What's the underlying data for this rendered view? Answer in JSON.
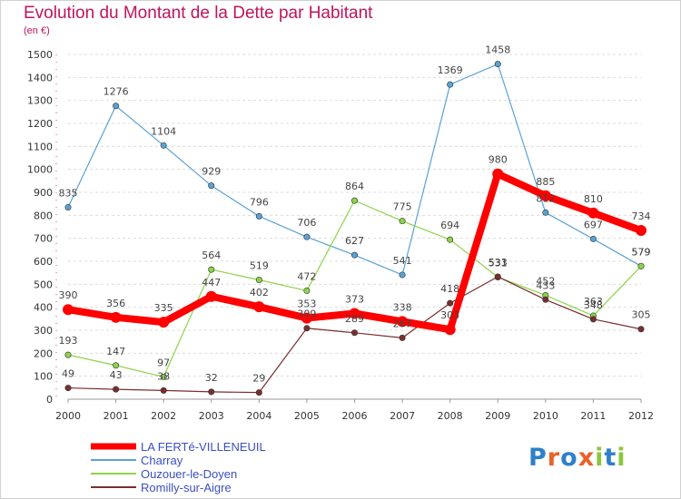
{
  "header": {
    "title": "Evolution du Montant de la Dette par Habitant",
    "subtitle": "(en €)"
  },
  "logo": {
    "text": "Proxiti",
    "colors": [
      "#2f7fc9",
      "#e8622a",
      "#2f7fc9",
      "#e8622a",
      "#8cc63f",
      "#2f7fc9",
      "#8cc63f"
    ]
  },
  "chart_data": {
    "type": "line",
    "x": [
      "2000",
      "2001",
      "2002",
      "2003",
      "2004",
      "2005",
      "2006",
      "2007",
      "2008",
      "2009",
      "2010",
      "2011",
      "2012"
    ],
    "ylim": [
      0,
      1500
    ],
    "yticks": [
      0,
      100,
      200,
      300,
      400,
      500,
      600,
      700,
      800,
      900,
      1000,
      1100,
      1200,
      1300,
      1400,
      1500
    ],
    "grid": "horizontal",
    "legend": "bottom-left",
    "series": [
      {
        "name": "Charray",
        "color": "#5aa2d6",
        "width": 1.2,
        "values": [
          835,
          1276,
          1104,
          929,
          796,
          706,
          627,
          541,
          1369,
          1458,
          812,
          697,
          579
        ]
      },
      {
        "name": "Ouzouer-le-Doyen",
        "color": "#8cd44a",
        "width": 1.2,
        "values": [
          193,
          147,
          97,
          564,
          519,
          472,
          864,
          775,
          694,
          531,
          452,
          363,
          579
        ]
      },
      {
        "name": "Romilly-sur-Aigre",
        "color": "#7a2e2e",
        "width": 1.2,
        "values": [
          49,
          43,
          38,
          32,
          29,
          309,
          289,
          267,
          418,
          533,
          433,
          348,
          305
        ]
      },
      {
        "name": "LA FERTé-VILLENEUIL",
        "color": "#ff0000",
        "width": 8,
        "values": [
          390,
          356,
          335,
          447,
          402,
          353,
          373,
          338,
          303,
          980,
          885,
          810,
          734
        ]
      }
    ],
    "legend_order": [
      "LA FERTé-VILLENEUIL",
      "Charray",
      "Ouzouer-le-Doyen",
      "Romilly-sur-Aigre"
    ]
  }
}
